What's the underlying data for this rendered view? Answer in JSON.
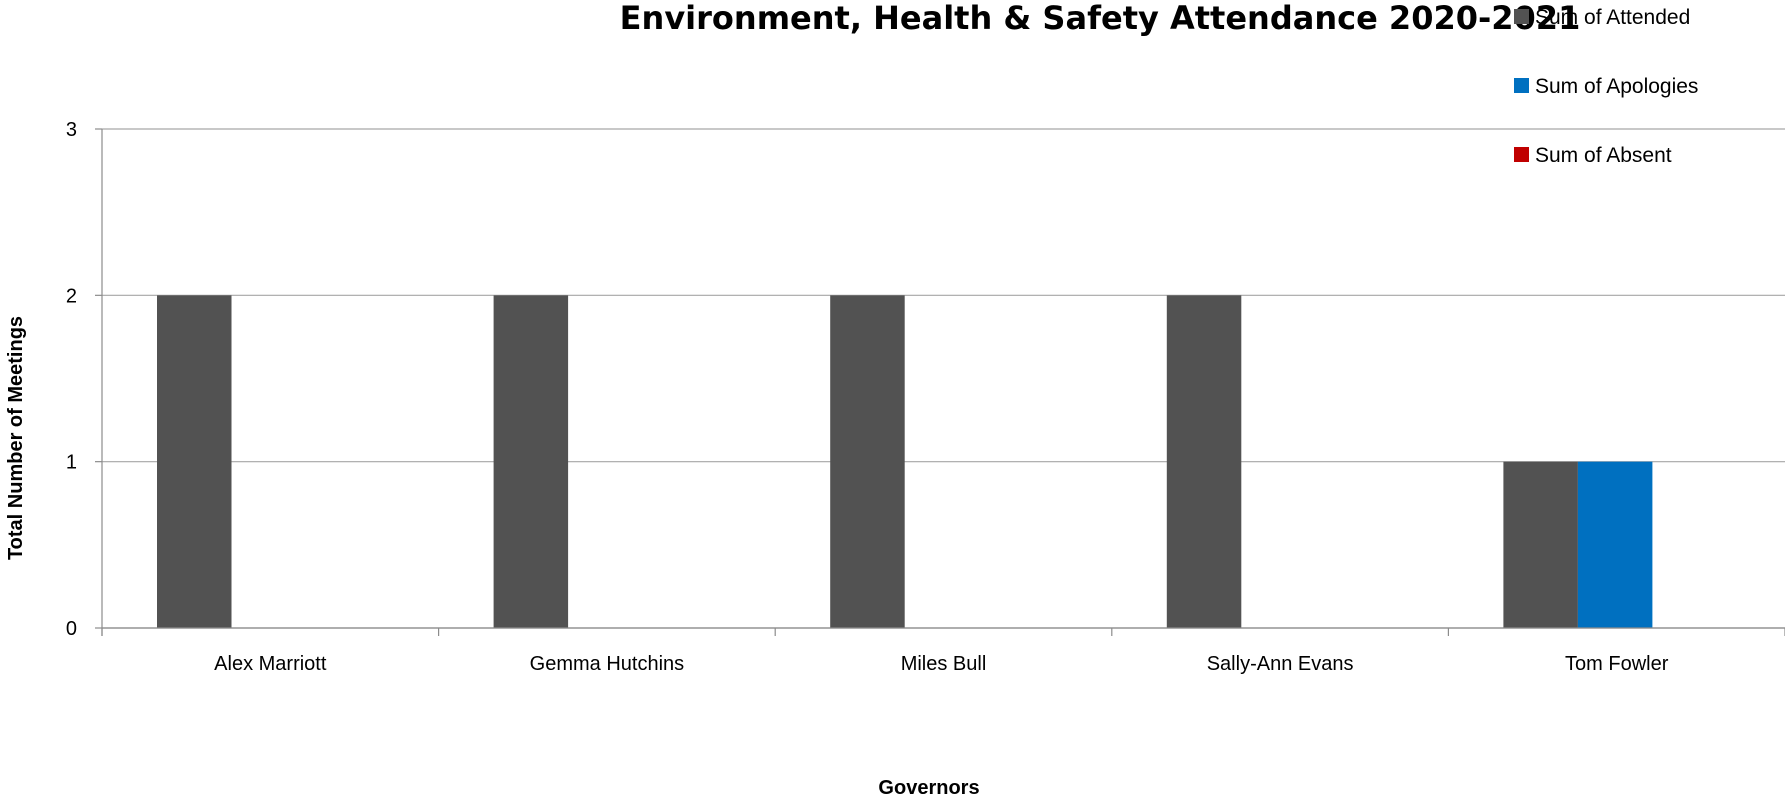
{
  "chart_data": {
    "type": "bar",
    "title": "Environment, Health & Safety Attendance 2020-2021",
    "xlabel": "Governors",
    "ylabel": "Total Number of Meetings",
    "categories": [
      "Alex Marriott",
      "Gemma Hutchins",
      "Miles Bull",
      "Sally-Ann Evans",
      "Tom Fowler"
    ],
    "series": [
      {
        "name": "Sum of Attended",
        "color": "#525252",
        "values": [
          2,
          2,
          2,
          2,
          1
        ]
      },
      {
        "name": "Sum of Apologies",
        "color": "#0070c0",
        "values": [
          0,
          0,
          0,
          0,
          1
        ]
      },
      {
        "name": "Sum of Absent",
        "color": "#c00000",
        "values": [
          0,
          0,
          0,
          0,
          0
        ]
      }
    ],
    "ylim": [
      0,
      3
    ],
    "yticks": [
      0,
      1,
      2,
      3
    ],
    "grid": true,
    "legend_position": "top-right"
  }
}
